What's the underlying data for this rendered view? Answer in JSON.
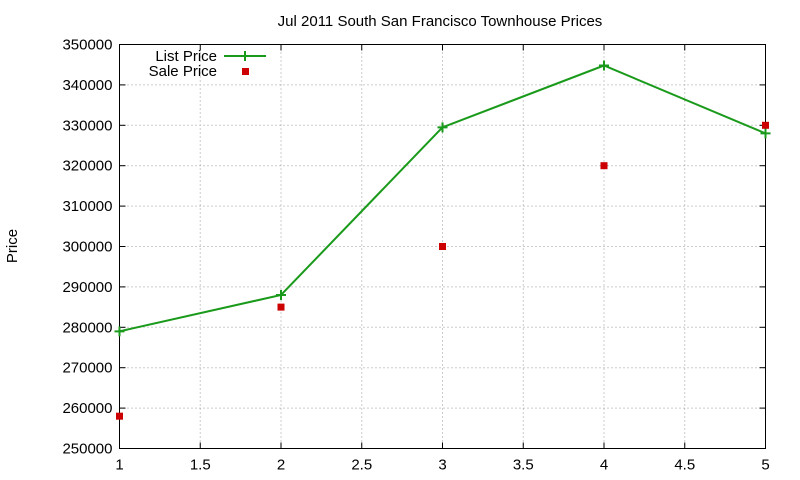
{
  "chart_data": {
    "type": "line",
    "title": "Jul 2011 South San Francisco Townhouse Prices",
    "xlabel": "",
    "ylabel": "Price",
    "xlim": [
      1,
      5
    ],
    "ylim": [
      250000,
      350000
    ],
    "x_ticks": [
      "1",
      "1.5",
      "2",
      "2.5",
      "3",
      "3.5",
      "4",
      "4.5",
      "5"
    ],
    "y_ticks": [
      "250000",
      "260000",
      "270000",
      "280000",
      "290000",
      "300000",
      "310000",
      "320000",
      "330000",
      "340000",
      "350000"
    ],
    "grid": true,
    "legend_position": "top-left",
    "series": [
      {
        "name": "List Price",
        "style": "line-with-plus-markers",
        "color": "#1a9a1a",
        "x": [
          1,
          2,
          3,
          4,
          5
        ],
        "y": [
          279000,
          288000,
          329500,
          344800,
          328000
        ]
      },
      {
        "name": "Sale Price",
        "style": "square-markers",
        "color": "#cc0000",
        "x": [
          1,
          2,
          3,
          4,
          5
        ],
        "y": [
          258000,
          285000,
          300000,
          320000,
          330000
        ]
      }
    ]
  }
}
